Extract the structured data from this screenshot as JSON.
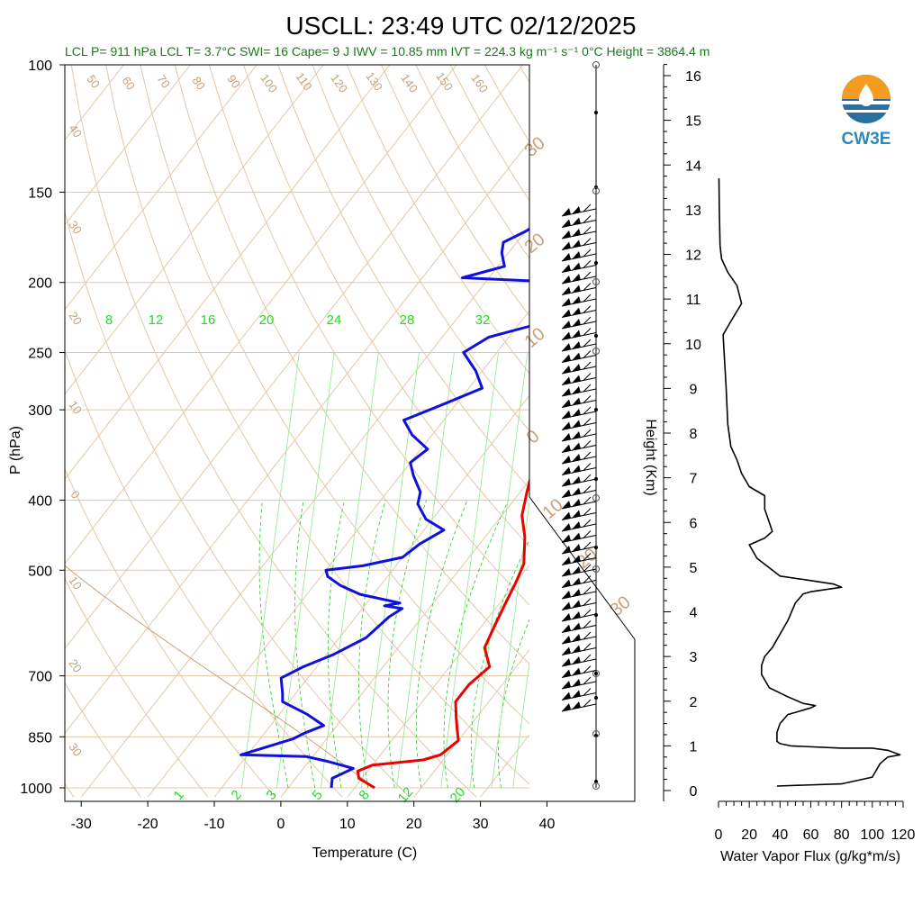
{
  "header": {
    "title": "USCLL: 23:49 UTC 02/12/2025",
    "subtitle": "LCL P= 911 hPa  LCL T= 3.7°C  SWI= 16  Cape= 9 J  IWV = 10.85 mm  IVT = 224.3 kg m⁻¹ s⁻¹  0°C Height = 3864.4 m"
  },
  "logo": {
    "text": "CW3E"
  },
  "colors": {
    "temperature": "#ee0000",
    "dewpoint": "#1010dd",
    "isotherm": "#e0c8a8",
    "mixing_ratio": "#22cc22",
    "flux": "#000000"
  },
  "chart_data": [
    {
      "type": "line",
      "xlabel": "Temperature (C)",
      "ylabel": "P (hPa)",
      "xlim": [
        -34,
        50
      ],
      "ylim": [
        1030,
        100
      ],
      "y_scale": "log",
      "x_ticks": [
        "-30",
        "-20",
        "-10",
        "0",
        "10",
        "20",
        "30",
        "40"
      ],
      "y_ticks": [
        "100",
        "150",
        "200",
        "250",
        "300",
        "400",
        "500",
        "700",
        "850",
        "1000"
      ],
      "mixing_ratio_labels_top": [
        "8",
        "12",
        "16",
        "20",
        "24",
        "28",
        "32"
      ],
      "mixing_ratio_labels_bottom": [
        "1",
        "2",
        "3",
        "5",
        "8",
        "12",
        "20"
      ],
      "dry_adiabat_labels": [
        "50",
        "60",
        "70",
        "80",
        "90",
        "100",
        "110",
        "120",
        "130",
        "140",
        "150",
        "160"
      ],
      "moist_adiabat_labels": [
        "30",
        "20",
        "10",
        "0",
        "10",
        "20",
        "30"
      ],
      "isotherm_labels": [
        "40",
        "30",
        "20",
        "10",
        "0",
        "10",
        "20",
        "30"
      ],
      "series": [
        {
          "points": [
            [
              13.0,
              1000
            ],
            [
              9.5,
              970
            ],
            [
              8.5,
              948
            ],
            [
              10,
              930
            ],
            [
              17,
              915
            ],
            [
              19,
              900
            ],
            [
              20,
              860
            ],
            [
              18.5,
              830
            ],
            [
              17,
              800
            ],
            [
              15,
              760
            ],
            [
              15,
              720
            ],
            [
              16,
              680
            ],
            [
              13,
              640
            ],
            [
              12,
              600
            ],
            [
              11,
              560
            ],
            [
              10,
              520
            ],
            [
              9,
              490
            ],
            [
              6,
              450
            ],
            [
              3,
              420
            ],
            [
              1,
              390
            ],
            [
              -1,
              360
            ],
            [
              -3,
              330
            ],
            [
              -5,
              310
            ],
            [
              -7,
              290
            ],
            [
              -8,
              270
            ],
            [
              -8,
              250
            ],
            [
              -8,
              235
            ],
            [
              -9,
              225
            ],
            [
              -10,
              212
            ],
            [
              -11,
              202
            ],
            [
              -10,
              190
            ],
            [
              -9,
              180
            ],
            [
              -9,
              172
            ],
            [
              -8,
              166
            ],
            [
              -7,
              160
            ],
            [
              -5,
              156
            ],
            [
              -4,
              153
            ],
            [
              -4,
              150
            ],
            [
              -4,
              148
            ]
          ]
        },
        {
          "points": [
            [
              6.5,
              1000
            ],
            [
              5.5,
              970
            ],
            [
              7.5,
              940
            ],
            [
              3,
              920
            ],
            [
              -1,
              905
            ],
            [
              -11,
              900
            ],
            [
              -7,
              870
            ],
            [
              -5,
              855
            ],
            [
              -4,
              840
            ],
            [
              -2,
              820
            ],
            [
              -6,
              790
            ],
            [
              -11,
              760
            ],
            [
              -12,
              740
            ],
            [
              -14,
              705
            ],
            [
              -12,
              680
            ],
            [
              -9,
              655
            ],
            [
              -6,
              620
            ],
            [
              -5,
              580
            ],
            [
              -4,
              565
            ],
            [
              -7,
              560
            ],
            [
              -5,
              555
            ],
            [
              -12,
              540
            ],
            [
              -16,
              525
            ],
            [
              -19,
              510
            ],
            [
              -20,
              500
            ],
            [
              -15,
              493
            ],
            [
              -10,
              480
            ],
            [
              -9,
              460
            ],
            [
              -7,
              440
            ],
            [
              -11,
              425
            ],
            [
              -14,
              405
            ],
            [
              -15,
              390
            ],
            [
              -18,
              370
            ],
            [
              -20,
              355
            ],
            [
              -19,
              340
            ],
            [
              -23,
              325
            ],
            [
              -26,
              310
            ],
            [
              -22,
              295
            ],
            [
              -18,
              280
            ],
            [
              -21,
              265
            ],
            [
              -25,
              250
            ],
            [
              -23,
              238
            ],
            [
              -17,
              228
            ],
            [
              -10,
              222
            ],
            [
              -7,
              218
            ],
            [
              -9,
              210
            ],
            [
              -12,
              205
            ],
            [
              -18,
              200
            ],
            [
              -34,
              197
            ],
            [
              -29,
              190
            ],
            [
              -31,
              182
            ],
            [
              -32,
              176
            ],
            [
              -30,
              170
            ],
            [
              -28,
              163
            ],
            [
              -29,
              158
            ],
            [
              -27,
              153
            ],
            [
              -26,
              150
            ]
          ]
        }
      ]
    },
    {
      "type": "line",
      "xlabel": "Water Vapor Flux (g/kg*m/s)",
      "ylabel": "Height (Km)",
      "xlim": [
        0,
        120
      ],
      "ylim": [
        0,
        16.5
      ],
      "x_ticks": [
        "0",
        "20",
        "40",
        "60",
        "80",
        "100",
        "120"
      ],
      "y_ticks": [
        "0",
        "1",
        "2",
        "3",
        "4",
        "5",
        "6",
        "7",
        "8",
        "9",
        "10",
        "11",
        "12",
        "13",
        "14",
        "15",
        "16"
      ],
      "series": [
        {
          "points": [
            [
              38,
              0.1
            ],
            [
              80,
              0.15
            ],
            [
              100,
              0.3
            ],
            [
              105,
              0.6
            ],
            [
              110,
              0.75
            ],
            [
              118,
              0.8
            ],
            [
              110,
              0.9
            ],
            [
              100,
              0.95
            ],
            [
              80,
              0.95
            ],
            [
              47,
              1.0
            ],
            [
              40,
              1.05
            ],
            [
              38,
              1.1
            ],
            [
              38,
              1.3
            ],
            [
              40,
              1.5
            ],
            [
              45,
              1.7
            ],
            [
              55,
              1.8
            ],
            [
              60,
              1.85
            ],
            [
              63,
              1.9
            ],
            [
              55,
              1.95
            ],
            [
              45,
              2.1
            ],
            [
              33,
              2.3
            ],
            [
              28,
              2.6
            ],
            [
              28,
              2.8
            ],
            [
              30,
              3.0
            ],
            [
              35,
              3.2
            ],
            [
              40,
              3.5
            ],
            [
              45,
              3.8
            ],
            [
              50,
              4.2
            ],
            [
              55,
              4.4
            ],
            [
              60,
              4.45
            ],
            [
              70,
              4.5
            ],
            [
              80,
              4.55
            ],
            [
              75,
              4.62
            ],
            [
              60,
              4.7
            ],
            [
              40,
              4.8
            ],
            [
              25,
              5.2
            ],
            [
              20,
              5.5
            ],
            [
              30,
              5.65
            ],
            [
              35,
              5.8
            ],
            [
              33,
              6.0
            ],
            [
              30,
              6.3
            ],
            [
              30,
              6.6
            ],
            [
              20,
              6.8
            ],
            [
              15,
              7.1
            ],
            [
              12,
              7.4
            ],
            [
              8,
              7.7
            ],
            [
              6,
              8.2
            ],
            [
              5,
              9.0
            ],
            [
              4,
              9.6
            ],
            [
              3,
              10.2
            ],
            [
              8,
              10.5
            ],
            [
              15,
              10.9
            ],
            [
              12,
              11.3
            ],
            [
              6,
              11.6
            ],
            [
              2,
              11.9
            ],
            [
              1,
              12.2
            ],
            [
              0.5,
              13.0
            ],
            [
              0.3,
              13.7
            ]
          ]
        }
      ]
    }
  ]
}
